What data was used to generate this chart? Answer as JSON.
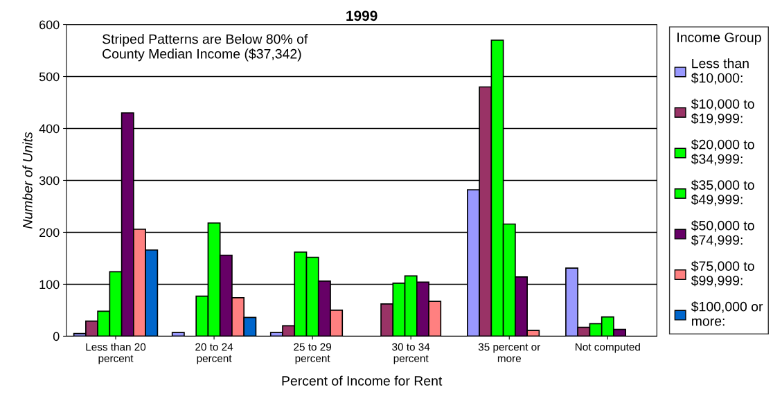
{
  "chart_data": {
    "type": "bar",
    "title": "1999",
    "xlabel": "Percent of Income for Rent",
    "ylabel": "Number of Units",
    "legend_title": "Income Group",
    "categories": [
      "Less than 20\npercent",
      "20 to 24\npercent",
      "25 to 29\npercent",
      "30 to 34\npercent",
      "35 percent or\nmore",
      "Not computed"
    ],
    "series": [
      {
        "name": "Less than\n$10,000:",
        "color": "#9999ff",
        "values": [
          5,
          7,
          7,
          null,
          282,
          131
        ]
      },
      {
        "name": "$10,000 to\n$19,999:",
        "color": "#993366",
        "values": [
          29,
          null,
          20,
          62,
          480,
          17
        ]
      },
      {
        "name": "$20,000 to\n$34,999:",
        "color": "#00ff00",
        "values": [
          48,
          77,
          162,
          102,
          570,
          24
        ]
      },
      {
        "name": "$35,000 to\n$49,999:",
        "color": "#00ff00",
        "values": [
          124,
          218,
          152,
          116,
          216,
          37
        ]
      },
      {
        "name": "$50,000 to\n$74,999:",
        "color": "#660066",
        "values": [
          430,
          156,
          106,
          104,
          114,
          13
        ]
      },
      {
        "name": "$75,000 to\n$99,999:",
        "color": "#ff8080",
        "values": [
          206,
          74,
          50,
          67,
          11,
          null
        ]
      },
      {
        "name": "$100,000 or\nmore:",
        "color": "#0066cc",
        "values": [
          166,
          36,
          null,
          null,
          null,
          null
        ]
      }
    ],
    "ylim": [
      0,
      600
    ],
    "yticks": [
      0,
      100,
      200,
      300,
      400,
      500,
      600
    ],
    "grid": "y",
    "legend": "right",
    "annotations": [
      "Striped Patterns are Below 80% of\nCounty Median Income ($37,342)"
    ]
  }
}
